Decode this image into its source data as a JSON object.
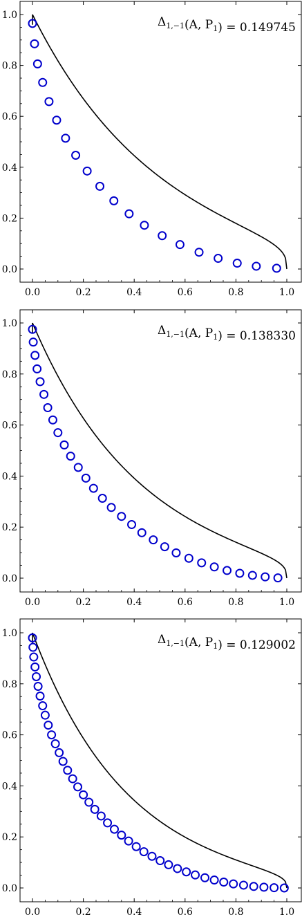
{
  "chart_data": [
    {
      "type": "scatter",
      "annotation": {
        "delta": "Δ",
        "subscript": "1,−1",
        "args": "(A, P",
        "arg_sub": "1",
        "close": ") = ",
        "value": "0.149745"
      },
      "xlim": [
        0,
        1
      ],
      "ylim": [
        0,
        1
      ],
      "xticks": [
        "0.0",
        "0.2",
        "0.4",
        "0.6",
        "0.8",
        "1.0"
      ],
      "yticks": [
        "0.0",
        "0.2",
        "0.4",
        "0.6",
        "0.8",
        "1.0"
      ],
      "grid": false,
      "series": [
        {
          "kind": "line",
          "color": "#000000",
          "curve": {
            "form": "power",
            "exponent": 3,
            "lambda": 6.0
          }
        },
        {
          "kind": "markers",
          "marker": "circle",
          "color": "#0000cc",
          "points": [
            [
              0.0,
              0.965
            ],
            [
              0.008,
              0.885
            ],
            [
              0.02,
              0.806
            ],
            [
              0.04,
              0.733
            ],
            [
              0.065,
              0.658
            ],
            [
              0.095,
              0.585
            ],
            [
              0.13,
              0.514
            ],
            [
              0.17,
              0.447
            ],
            [
              0.215,
              0.385
            ],
            [
              0.265,
              0.325
            ],
            [
              0.32,
              0.268
            ],
            [
              0.38,
              0.217
            ],
            [
              0.44,
              0.172
            ],
            [
              0.51,
              0.131
            ],
            [
              0.58,
              0.096
            ],
            [
              0.655,
              0.066
            ],
            [
              0.73,
              0.042
            ],
            [
              0.805,
              0.023
            ],
            [
              0.88,
              0.011
            ],
            [
              0.96,
              0.003
            ]
          ]
        }
      ]
    },
    {
      "type": "scatter",
      "annotation": {
        "delta": "Δ",
        "subscript": "1,−1",
        "args": "(A, P",
        "arg_sub": "1",
        "close": ") = ",
        "value": "0.138330"
      },
      "xlim": [
        0,
        1
      ],
      "ylim": [
        0,
        1
      ],
      "xticks": [
        "0.0",
        "0.2",
        "0.4",
        "0.6",
        "0.8",
        "1.0"
      ],
      "yticks": [
        "0.0",
        "0.2",
        "0.4",
        "0.6",
        "0.8",
        "1.0"
      ],
      "grid": false,
      "series": [
        {
          "kind": "line",
          "color": "#000000",
          "curve": {
            "form": "power",
            "exponent": 3,
            "lambda": 7.0
          }
        },
        {
          "kind": "markers",
          "marker": "circle",
          "color": "#0000cc",
          "points": [
            [
              0.0,
              0.975
            ],
            [
              0.003,
              0.925
            ],
            [
              0.01,
              0.873
            ],
            [
              0.018,
              0.82
            ],
            [
              0.03,
              0.77
            ],
            [
              0.045,
              0.72
            ],
            [
              0.06,
              0.668
            ],
            [
              0.08,
              0.62
            ],
            [
              0.1,
              0.57
            ],
            [
              0.125,
              0.522
            ],
            [
              0.15,
              0.478
            ],
            [
              0.18,
              0.434
            ],
            [
              0.21,
              0.392
            ],
            [
              0.24,
              0.352
            ],
            [
              0.275,
              0.313
            ],
            [
              0.31,
              0.277
            ],
            [
              0.35,
              0.242
            ],
            [
              0.39,
              0.21
            ],
            [
              0.43,
              0.178
            ],
            [
              0.475,
              0.15
            ],
            [
              0.52,
              0.123
            ],
            [
              0.565,
              0.099
            ],
            [
              0.615,
              0.078
            ],
            [
              0.665,
              0.06
            ],
            [
              0.715,
              0.044
            ],
            [
              0.765,
              0.03
            ],
            [
              0.815,
              0.019
            ],
            [
              0.865,
              0.011
            ],
            [
              0.915,
              0.005
            ],
            [
              0.965,
              0.001
            ]
          ]
        }
      ]
    },
    {
      "type": "scatter",
      "annotation": {
        "delta": "Δ",
        "subscript": "1,−1",
        "args": "(A, P",
        "arg_sub": "1",
        "close": ") = ",
        "value": "0.129002"
      },
      "xlim": [
        0,
        1
      ],
      "ylim": [
        0,
        1
      ],
      "xticks": [
        "0.0",
        "0.2",
        "0.4",
        "0.6",
        "0.8",
        "1.0"
      ],
      "yticks": [
        "0.0",
        "0.2",
        "0.4",
        "0.6",
        "0.8",
        "1.0"
      ],
      "grid": false,
      "series": [
        {
          "kind": "line",
          "color": "#000000",
          "curve": {
            "form": "power",
            "exponent": 3,
            "lambda": 8.0
          }
        },
        {
          "kind": "markers",
          "marker": "circle",
          "color": "#0000cc",
          "points": [
            [
              0.0,
              0.98
            ],
            [
              0.002,
              0.943
            ],
            [
              0.005,
              0.905
            ],
            [
              0.01,
              0.866
            ],
            [
              0.015,
              0.828
            ],
            [
              0.022,
              0.79
            ],
            [
              0.03,
              0.752
            ],
            [
              0.04,
              0.714
            ],
            [
              0.05,
              0.677
            ],
            [
              0.062,
              0.638
            ],
            [
              0.075,
              0.6
            ],
            [
              0.09,
              0.565
            ],
            [
              0.105,
              0.53
            ],
            [
              0.12,
              0.496
            ],
            [
              0.138,
              0.461
            ],
            [
              0.158,
              0.428
            ],
            [
              0.178,
              0.396
            ],
            [
              0.2,
              0.365
            ],
            [
              0.222,
              0.336
            ],
            [
              0.245,
              0.308
            ],
            [
              0.27,
              0.282
            ],
            [
              0.295,
              0.255
            ],
            [
              0.322,
              0.23
            ],
            [
              0.35,
              0.207
            ],
            [
              0.378,
              0.184
            ],
            [
              0.408,
              0.162
            ],
            [
              0.438,
              0.142
            ],
            [
              0.47,
              0.124
            ],
            [
              0.502,
              0.107
            ],
            [
              0.535,
              0.091
            ],
            [
              0.57,
              0.076
            ],
            [
              0.605,
              0.063
            ],
            [
              0.64,
              0.051
            ],
            [
              0.678,
              0.04
            ],
            [
              0.715,
              0.031
            ],
            [
              0.752,
              0.023
            ],
            [
              0.79,
              0.016
            ],
            [
              0.83,
              0.011
            ],
            [
              0.87,
              0.006
            ],
            [
              0.91,
              0.003
            ],
            [
              0.95,
              0.001
            ],
            [
              0.99,
              0.0
            ]
          ]
        }
      ]
    }
  ]
}
